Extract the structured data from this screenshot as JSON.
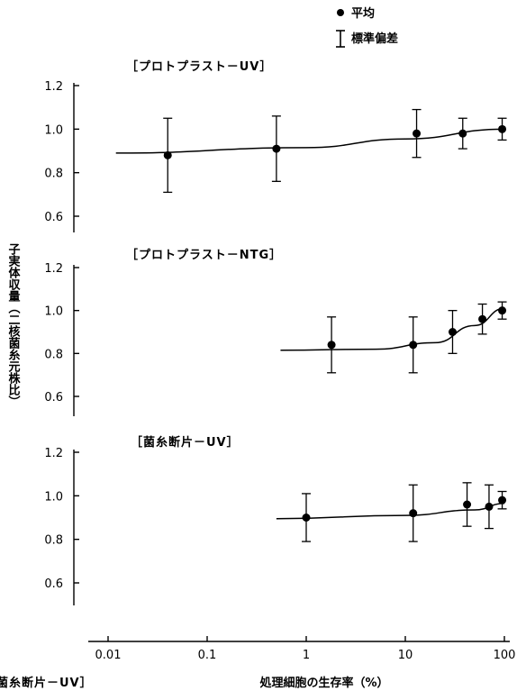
{
  "legend": {
    "mean_label": "平均",
    "sd_label": "標準偏差"
  },
  "axes": {
    "xlabel": "処理細胞の生存率（%）",
    "ylabel": "子実体収量（二核菌糸元株比）",
    "x_ticks": [
      "0.01",
      "0.1",
      "1",
      "10",
      "100"
    ],
    "x_tick_values": [
      0.01,
      0.1,
      1,
      10,
      100
    ],
    "y_ticks": [
      "0.6",
      "0.8",
      "1.0",
      "1.2"
    ],
    "y_tick_values": [
      0.6,
      0.8,
      1.0,
      1.2
    ],
    "x_scale": "log",
    "xlim": [
      0.005,
      110
    ],
    "ylim": [
      0.5,
      1.2
    ]
  },
  "footer_fragment": "菌糸断片－UV］",
  "colors": {
    "ink": "#000000",
    "background": "#ffffff"
  },
  "chart_data": [
    {
      "type": "scatter",
      "title": "［プロトプラスト－UV］",
      "x": [
        0.04,
        0.5,
        13,
        38,
        95
      ],
      "y": [
        0.88,
        0.91,
        0.98,
        0.98,
        1.0
      ],
      "error": [
        0.17,
        0.15,
        0.11,
        0.07,
        0.05
      ],
      "fit_line": {
        "x": [
          0.012,
          1,
          10,
          100
        ],
        "y": [
          0.89,
          0.915,
          0.955,
          1.0
        ]
      }
    },
    {
      "type": "scatter",
      "title": "［プロトプラスト－NTG］",
      "x": [
        1.8,
        12,
        30,
        60,
        95
      ],
      "y": [
        0.84,
        0.84,
        0.9,
        0.96,
        1.0
      ],
      "error": [
        0.13,
        0.13,
        0.1,
        0.07,
        0.04
      ],
      "fit_line": {
        "x": [
          0.55,
          5,
          20,
          50,
          100
        ],
        "y": [
          0.815,
          0.82,
          0.85,
          0.93,
          1.01
        ]
      }
    },
    {
      "type": "scatter",
      "title": "［菌糸断片－UV］",
      "x": [
        1,
        12,
        42,
        70,
        95
      ],
      "y": [
        0.9,
        0.92,
        0.96,
        0.95,
        0.98
      ],
      "error": [
        0.11,
        0.13,
        0.1,
        0.1,
        0.04
      ],
      "fit_line": {
        "x": [
          0.5,
          10,
          50,
          100
        ],
        "y": [
          0.895,
          0.91,
          0.935,
          0.965
        ]
      }
    }
  ]
}
